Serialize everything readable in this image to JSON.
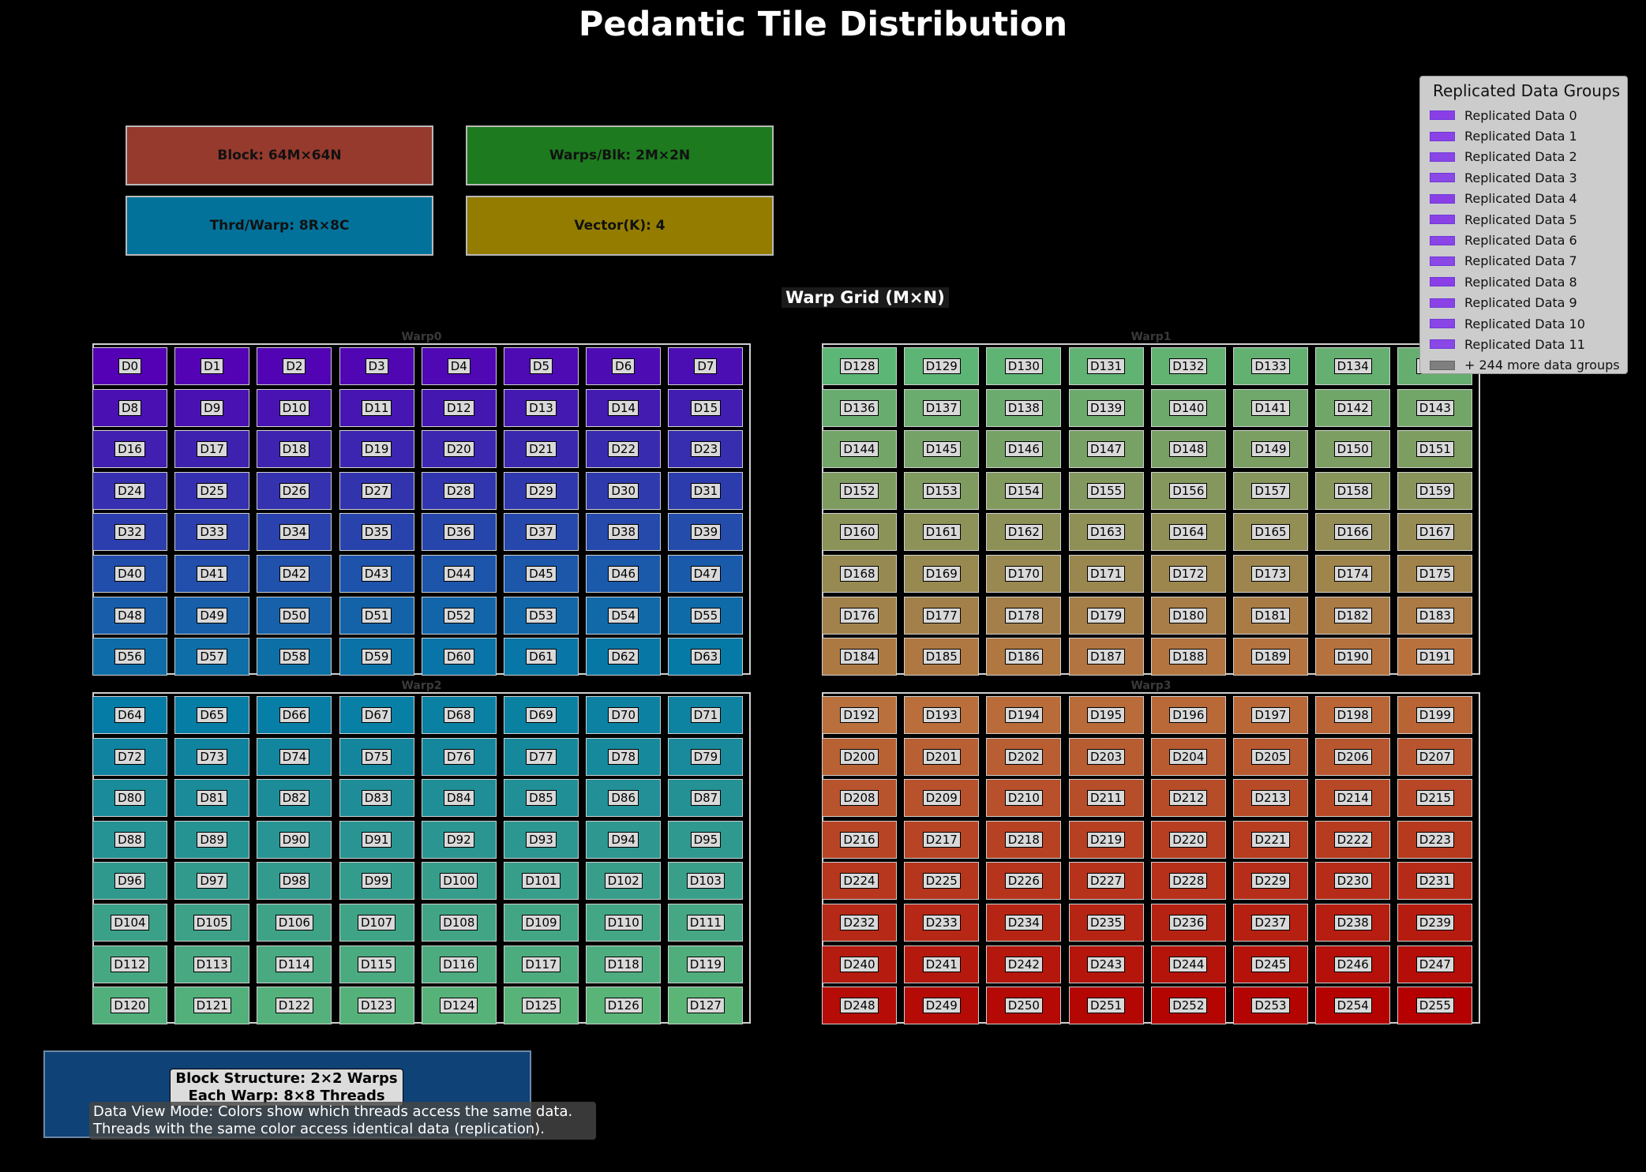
{
  "title": "Pedantic Tile Distribution",
  "info_boxes": [
    {
      "label": "Block: 64M×64N",
      "color": "#963a2e"
    },
    {
      "label": "Warps/Blk: 2M×2N",
      "color": "#1d7a1f"
    },
    {
      "label": "Thrd/Warp: 8R×8C",
      "color": "#03729a"
    },
    {
      "label": "Vector(K): 4",
      "color": "#937c00"
    }
  ],
  "grid_title": "Warp Grid (M×N)",
  "warps": [
    {
      "label": "Warp0",
      "start": 0
    },
    {
      "label": "Warp1",
      "start": 128
    },
    {
      "label": "Warp2",
      "start": 64
    },
    {
      "label": "Warp3",
      "start": 192
    }
  ],
  "tile_prefix": "D",
  "legend": {
    "title": "Replicated Data Groups",
    "items": [
      "Replicated Data 0",
      "Replicated Data 1",
      "Replicated Data 2",
      "Replicated Data 3",
      "Replicated Data 4",
      "Replicated Data 5",
      "Replicated Data 6",
      "Replicated Data 7",
      "Replicated Data 8",
      "Replicated Data 9",
      "Replicated Data 10",
      "Replicated Data 11"
    ],
    "more": "+ 244 more data groups"
  },
  "bottom_caption": [
    "Block Structure: 2×2 Warps",
    "Each Warp: 8×8 Threads"
  ],
  "note": [
    "Data View Mode: Colors show which threads access the same data.",
    "Threads with the same color access identical data (replication)."
  ]
}
